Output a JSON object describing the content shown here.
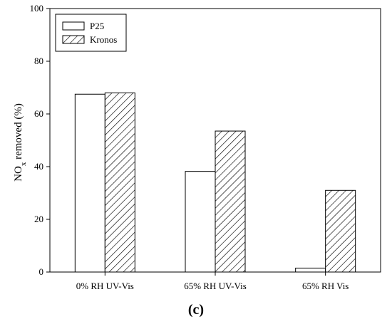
{
  "panel_label": "(c)",
  "chart_data": {
    "type": "bar",
    "categories": [
      "0% RH UV-Vis",
      "65% RH UV-Vis",
      "65% RH Vis"
    ],
    "series": [
      {
        "name": "P25",
        "values": [
          67.5,
          38.2,
          1.5
        ],
        "pattern": "none"
      },
      {
        "name": "Kronos",
        "values": [
          68.0,
          53.5,
          31.0
        ],
        "pattern": "diagonal-hatch"
      }
    ],
    "title": "",
    "xlabel": "",
    "ylabel_main": "NO",
    "ylabel_sub": "x",
    "ylabel_rest": " removed (%)",
    "ylim": [
      0,
      100
    ],
    "yticks": [
      "0",
      "20",
      "40",
      "60",
      "80",
      "100"
    ],
    "legend_position": "top-left",
    "grid": false
  }
}
